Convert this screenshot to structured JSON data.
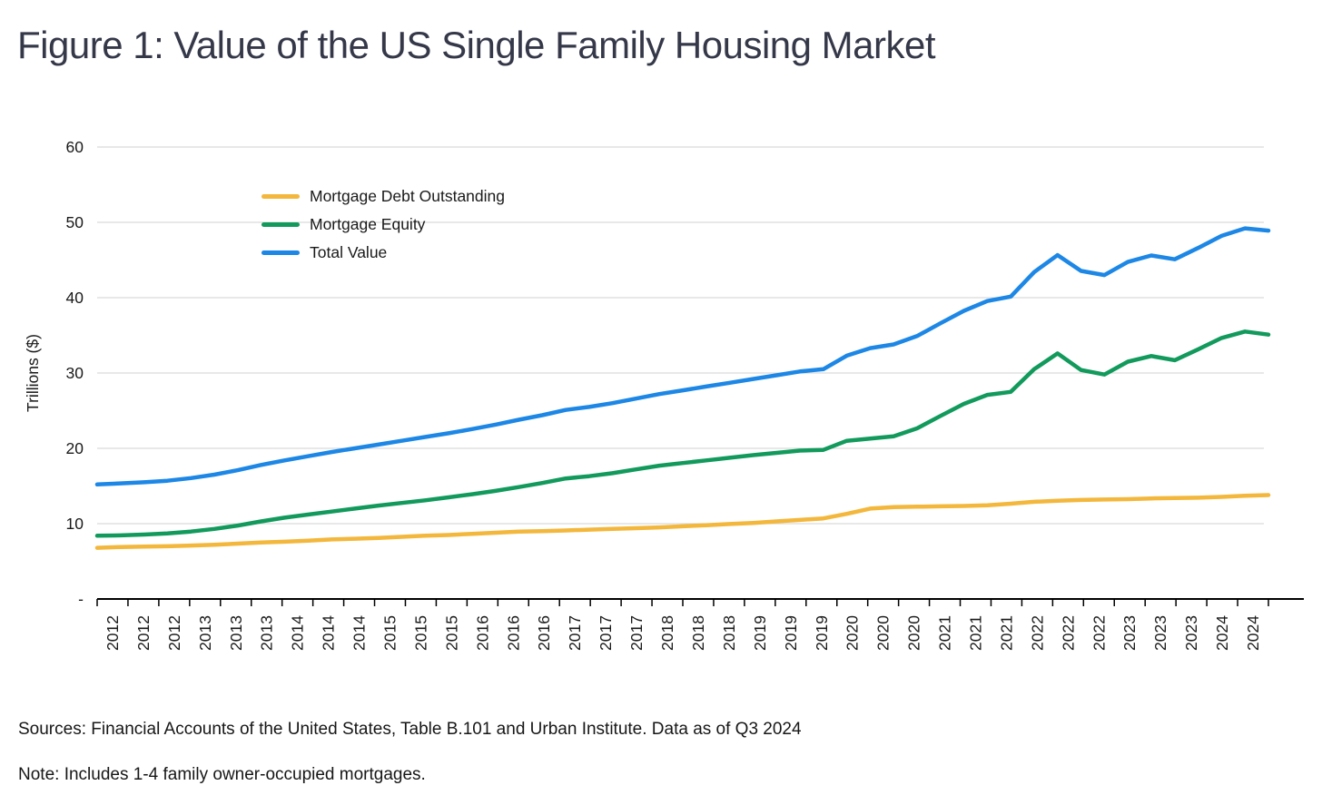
{
  "title": "Figure 1: Value of the US Single Family Housing Market",
  "y_axis": {
    "title": "Trillions ($)",
    "tick_labels": [
      "60",
      "50",
      "40",
      "30",
      "20",
      "10",
      "-"
    ],
    "tick_values": [
      60,
      50,
      40,
      30,
      20,
      10,
      0
    ],
    "min": 0,
    "max": 60
  },
  "x_axis": {
    "tick_labels": [
      "2012",
      "2012",
      "2012",
      "2013",
      "2013",
      "2013",
      "2014",
      "2014",
      "2014",
      "2015",
      "2015",
      "2015",
      "2016",
      "2016",
      "2016",
      "2017",
      "2017",
      "2017",
      "2018",
      "2018",
      "2018",
      "2019",
      "2019",
      "2019",
      "2020",
      "2020",
      "2020",
      "2021",
      "2021",
      "2021",
      "2022",
      "2022",
      "2022",
      "2023",
      "2023",
      "2023",
      "2024",
      "2024"
    ]
  },
  "legend": [
    {
      "label": "Mortgage Debt Outstanding",
      "color": "#F3B73C"
    },
    {
      "label": "Mortgage Equity",
      "color": "#129A5C"
    },
    {
      "label": "Total Value",
      "color": "#1D87E6"
    }
  ],
  "chart_data": {
    "type": "line",
    "title": "Figure 1: Value of the US Single Family Housing Market",
    "xlabel": "",
    "ylabel": "Trillions ($)",
    "ylim": [
      0,
      60
    ],
    "grid": "horizontal",
    "legend_position": "upper-left-inside",
    "x": [
      "2012 Q1",
      "2012 Q2",
      "2012 Q3",
      "2012 Q4",
      "2013 Q1",
      "2013 Q2",
      "2013 Q3",
      "2013 Q4",
      "2014 Q1",
      "2014 Q2",
      "2014 Q3",
      "2014 Q4",
      "2015 Q1",
      "2015 Q2",
      "2015 Q3",
      "2015 Q4",
      "2016 Q1",
      "2016 Q2",
      "2016 Q3",
      "2016 Q4",
      "2017 Q1",
      "2017 Q2",
      "2017 Q3",
      "2017 Q4",
      "2018 Q1",
      "2018 Q2",
      "2018 Q3",
      "2018 Q4",
      "2019 Q1",
      "2019 Q2",
      "2019 Q3",
      "2019 Q4",
      "2020 Q1",
      "2020 Q2",
      "2020 Q3",
      "2020 Q4",
      "2021 Q1",
      "2021 Q2",
      "2021 Q3",
      "2021 Q4",
      "2022 Q1",
      "2022 Q2",
      "2022 Q3",
      "2022 Q4",
      "2023 Q1",
      "2023 Q2",
      "2023 Q3",
      "2023 Q4",
      "2024 Q1",
      "2024 Q2",
      "2024 Q3"
    ],
    "series": [
      {
        "name": "Mortgage Debt Outstanding",
        "color": "#F3B73C",
        "values": [
          6.8,
          6.9,
          6.95,
          7.0,
          7.1,
          7.2,
          7.35,
          7.5,
          7.6,
          7.75,
          7.9,
          8.0,
          8.1,
          8.25,
          8.4,
          8.5,
          8.65,
          8.8,
          8.95,
          9.0,
          9.1,
          9.2,
          9.3,
          9.4,
          9.5,
          9.65,
          9.8,
          9.95,
          10.1,
          10.3,
          10.5,
          10.7,
          11.3,
          12.0,
          12.2,
          12.25,
          12.3,
          12.35,
          12.45,
          12.65,
          12.9,
          13.05,
          13.15,
          13.2,
          13.25,
          13.35,
          13.4,
          13.45,
          13.55,
          13.7,
          13.8
        ]
      },
      {
        "name": "Mortgage Equity",
        "color": "#129A5C",
        "values": [
          8.4,
          8.45,
          8.55,
          8.7,
          8.95,
          9.3,
          9.75,
          10.3,
          10.8,
          11.2,
          11.6,
          12.0,
          12.4,
          12.75,
          13.1,
          13.5,
          13.9,
          14.35,
          14.85,
          15.4,
          16.0,
          16.3,
          16.7,
          17.2,
          17.7,
          18.05,
          18.4,
          18.75,
          19.1,
          19.4,
          19.7,
          19.8,
          21.0,
          21.3,
          21.6,
          22.65,
          24.3,
          25.9,
          27.1,
          27.5,
          30.5,
          32.6,
          30.4,
          29.8,
          31.5,
          32.25,
          31.7,
          33.15,
          34.65,
          35.5,
          35.1
        ]
      },
      {
        "name": "Total Value",
        "color": "#1D87E6",
        "values": [
          15.2,
          15.35,
          15.5,
          15.7,
          16.05,
          16.5,
          17.1,
          17.8,
          18.4,
          18.95,
          19.5,
          20.0,
          20.5,
          21.0,
          21.5,
          22.0,
          22.55,
          23.15,
          23.8,
          24.4,
          25.1,
          25.5,
          26.0,
          26.6,
          27.2,
          27.7,
          28.2,
          28.7,
          29.2,
          29.7,
          30.2,
          30.5,
          32.3,
          33.3,
          33.8,
          34.9,
          36.6,
          38.25,
          39.55,
          40.15,
          43.4,
          45.65,
          43.55,
          43.0,
          44.75,
          45.6,
          45.1,
          46.6,
          48.2,
          49.2,
          48.9
        ]
      }
    ]
  },
  "footer": {
    "sources": "Sources: Financial Accounts of the United States, Table B.101 and Urban Institute. Data as of Q3 2024",
    "note": "Note: Includes 1-4 family owner-occupied mortgages."
  },
  "colors": {
    "grid": "#DADADA",
    "axis": "#000000",
    "tick_text": "#1A1A1A",
    "title_text": "#353849"
  }
}
